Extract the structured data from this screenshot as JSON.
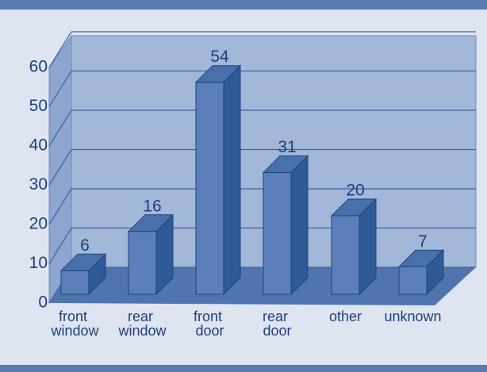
{
  "chart_data": {
    "type": "bar3d",
    "categories": [
      "front window",
      "rear window",
      "front door",
      "rear door",
      "other",
      "unknown"
    ],
    "values": [
      6,
      16,
      54,
      31,
      20,
      7
    ],
    "color": "#5a7fba",
    "ylim": [
      0,
      60
    ],
    "yticks": [
      0,
      10,
      20,
      30,
      40,
      50,
      60
    ],
    "grid": true
  }
}
